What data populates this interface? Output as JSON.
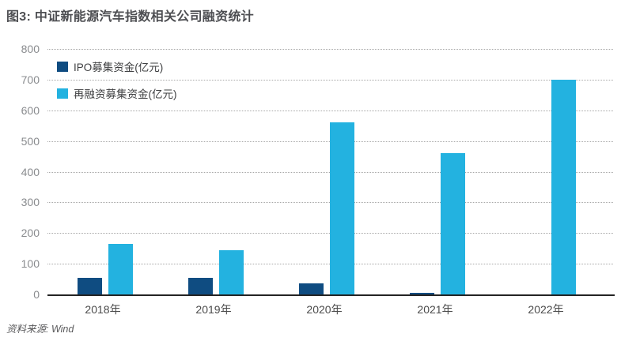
{
  "title": "图3: 中证新能源汽车指数相关公司融资统计",
  "footer": {
    "source_label": "资料来源: Wind"
  },
  "colors": {
    "ipo_bar": "#0f4c81",
    "refinance_bar": "#23b2e0",
    "title_text": "#4d4e52",
    "y_tick_text": "#8a8c8f",
    "x_tick_text": "#4b4b4b",
    "gridline": "#a8a8a8",
    "baseline": "#232323"
  },
  "chart_data": {
    "type": "bar",
    "title": "图3: 中证新能源汽车指数相关公司融资统计",
    "categories": [
      "2018年",
      "2019年",
      "2020年",
      "2021年",
      "2022年"
    ],
    "series": [
      {
        "name": "IPO募集资金(亿元)",
        "color": "#0f4c81",
        "values": [
          55,
          55,
          35,
          5,
          0
        ]
      },
      {
        "name": "再融资募集资金(亿元)",
        "color": "#23b2e0",
        "values": [
          165,
          145,
          560,
          460,
          700
        ]
      }
    ],
    "xlabel": "",
    "ylabel": "",
    "ylim": [
      0,
      800
    ],
    "yticks": [
      0,
      100,
      200,
      300,
      400,
      500,
      600,
      700,
      800
    ],
    "grid": "horizontal-dotted",
    "legend_position": "top-left-inside",
    "source": "Wind"
  }
}
